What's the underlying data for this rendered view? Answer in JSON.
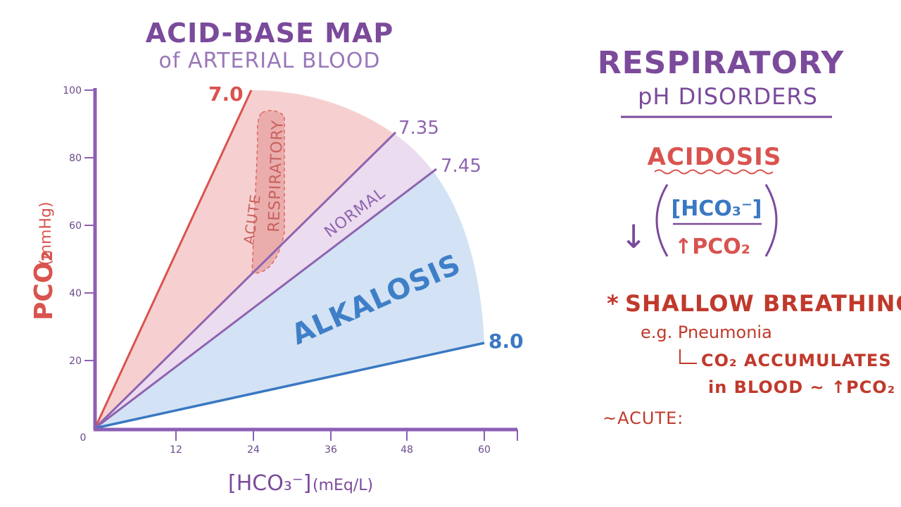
{
  "map": {
    "title": "ACID-BASE MAP",
    "subtitle": "of ARTERIAL BLOOD",
    "y_label": "PCO₂",
    "y_unit": "(mmHg)",
    "x_label": "[HCO₃⁻]",
    "x_unit": "(mEq/L)",
    "x_ticks": [
      "12",
      "24",
      "36",
      "48",
      "60"
    ],
    "y_ticks": [
      "20",
      "40",
      "60",
      "80",
      "100"
    ],
    "origin_label": "0",
    "ph_lines": {
      "ph_70": "7.0",
      "ph_735": "7.35",
      "ph_745": "7.45",
      "ph_80": "8.0"
    },
    "regions": {
      "normal": "NORMAL",
      "alkalosis": "ALKALOSIS",
      "acute": "ACUTE",
      "respiratory": "RESPIRATORY"
    },
    "colors": {
      "acidosis_fill": "#f6d0d0",
      "normal_fill": "#ecdcef",
      "alkalosis_fill": "#d3e3f5",
      "red": "#d9534f",
      "purple": "#8e64b0",
      "blue": "#3a78c2",
      "axis": "#8c5fb5"
    }
  },
  "sidebar": {
    "title": "RESPIRATORY",
    "subtitle": "pH DISORDERS",
    "acidosis": "ACIDOSIS",
    "fraction_top": "[HCO₃⁻]",
    "fraction_bottom": "↑PCO₂",
    "arrow": "↓",
    "bullet": "*",
    "cause": "SHALLOW BREATHING",
    "example": "e.g. Pneumonia",
    "consequence_line1": "CO₂ ACCUMULATES",
    "consequence_line2": "in BLOOD ~ ↑PCO₂",
    "acute": "~ACUTE:"
  }
}
